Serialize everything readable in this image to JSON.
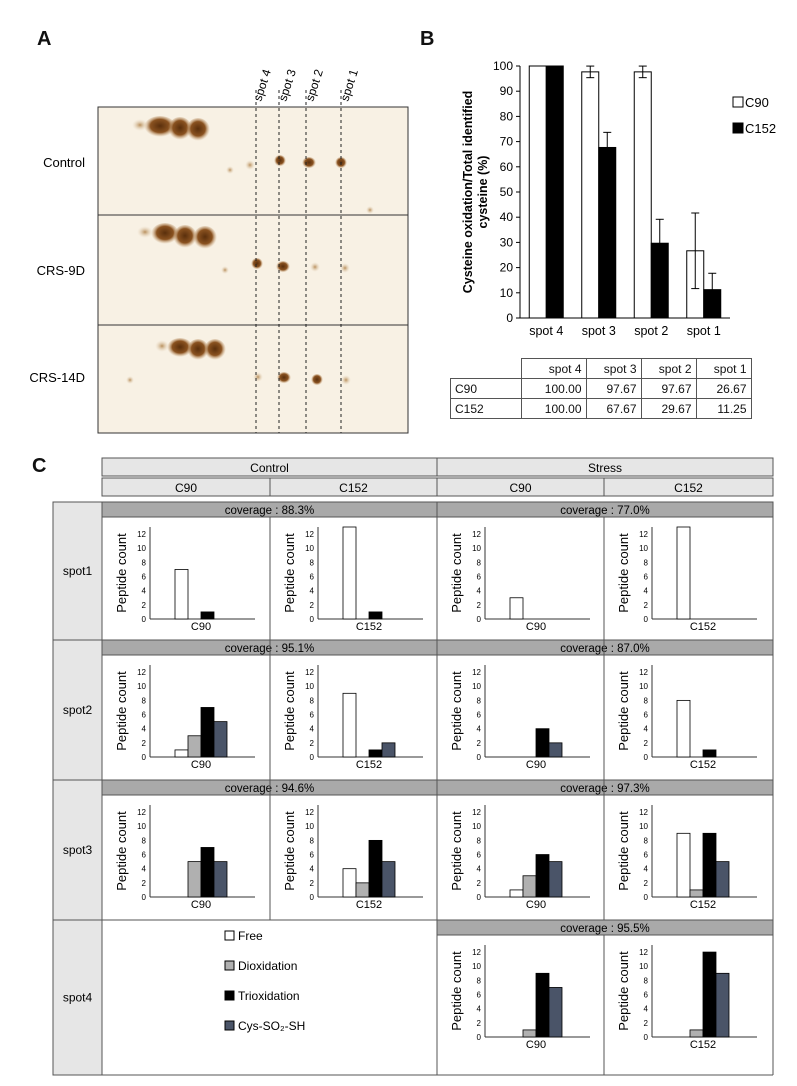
{
  "panel_labels": {
    "a": "A",
    "b": "B",
    "c": "C"
  },
  "panel_a": {
    "spot_labels": [
      "spot 4",
      "spot 3",
      "spot 2",
      "spot 1"
    ],
    "rows": [
      "Control",
      "CRS-9D",
      "CRS-14D"
    ]
  },
  "table_b": {
    "headers": [
      "",
      "spot 4",
      "spot 3",
      "spot 2",
      "spot 1"
    ],
    "rows": [
      {
        "label": "C90",
        "values": [
          "100.00",
          "97.67",
          "97.67",
          "26.67"
        ]
      },
      {
        "label": "C152",
        "values": [
          "100.00",
          "67.67",
          "29.67",
          "11.25"
        ]
      }
    ]
  },
  "panel_c": {
    "group_headers": [
      "Control",
      "Stress"
    ],
    "sub_headers": [
      "C90",
      "C152",
      "C90",
      "C152"
    ],
    "row_labels": [
      "spot1",
      "spot2",
      "spot3",
      "spot4"
    ],
    "coverage": [
      [
        "coverage : 88.3%",
        "coverage : 77.0%"
      ],
      [
        "coverage : 95.1%",
        "coverage : 87.0%"
      ],
      [
        "coverage : 94.6%",
        "coverage : 97.3%"
      ],
      [
        "",
        "coverage : 95.5%"
      ]
    ],
    "legend": [
      "Free",
      "Dioxidation",
      "Trioxidation",
      "Cys-SO₂-SH"
    ]
  },
  "chart_data": [
    {
      "type": "bar",
      "panel": "B",
      "categories": [
        "spot 4",
        "spot 3",
        "spot 2",
        "spot 1"
      ],
      "series": [
        {
          "name": "C90",
          "values": [
            100.0,
            97.67,
            97.67,
            26.67
          ],
          "errors": [
            0,
            2.3,
            2.3,
            15
          ],
          "color": "#ffffff"
        },
        {
          "name": "C152",
          "values": [
            100.0,
            67.67,
            29.67,
            11.25
          ],
          "errors": [
            0,
            6,
            9.5,
            6.5
          ],
          "color": "#000000"
        }
      ],
      "ylabel": "Cysteine oxidation/Total identified cysteine (%)",
      "ylim": [
        0,
        100
      ],
      "yticks": [
        0,
        10,
        20,
        30,
        40,
        50,
        60,
        70,
        80,
        90,
        100
      ],
      "legend_position": "right",
      "grid": false
    },
    {
      "type": "bar",
      "panel": "C",
      "ylabel": "Peptide count",
      "ylim": [
        0,
        13
      ],
      "yticks": [
        0,
        2,
        4,
        6,
        8,
        10,
        12
      ],
      "series_names": [
        "Free",
        "Dioxidation",
        "Trioxidation",
        "Cys-SO₂-SH"
      ],
      "series_colors": [
        "#ffffff",
        "#b0b0b0",
        "#000000",
        "#4a5468"
      ],
      "cells": [
        {
          "spot": "spot1",
          "condition": "Control",
          "xlabel": "C90",
          "values": [
            7,
            0,
            1,
            0
          ]
        },
        {
          "spot": "spot1",
          "condition": "Control",
          "xlabel": "C152",
          "values": [
            13,
            0,
            1,
            0
          ]
        },
        {
          "spot": "spot1",
          "condition": "Stress",
          "xlabel": "C90",
          "values": [
            3,
            0,
            0,
            0
          ]
        },
        {
          "spot": "spot1",
          "condition": "Stress",
          "xlabel": "C152",
          "values": [
            13,
            0,
            0,
            0
          ]
        },
        {
          "spot": "spot2",
          "condition": "Control",
          "xlabel": "C90",
          "values": [
            1,
            3,
            7,
            5
          ]
        },
        {
          "spot": "spot2",
          "condition": "Control",
          "xlabel": "C152",
          "values": [
            9,
            0,
            1,
            2
          ]
        },
        {
          "spot": "spot2",
          "condition": "Stress",
          "xlabel": "C90",
          "values": [
            0,
            0,
            4,
            2
          ]
        },
        {
          "spot": "spot2",
          "condition": "Stress",
          "xlabel": "C152",
          "values": [
            8,
            0,
            1,
            0
          ]
        },
        {
          "spot": "spot3",
          "condition": "Control",
          "xlabel": "C90",
          "values": [
            0,
            5,
            7,
            5
          ]
        },
        {
          "spot": "spot3",
          "condition": "Control",
          "xlabel": "C152",
          "values": [
            4,
            2,
            8,
            5
          ]
        },
        {
          "spot": "spot3",
          "condition": "Stress",
          "xlabel": "C90",
          "values": [
            1,
            3,
            6,
            5
          ]
        },
        {
          "spot": "spot3",
          "condition": "Stress",
          "xlabel": "C152",
          "values": [
            9,
            1,
            9,
            5
          ]
        },
        {
          "spot": "spot4",
          "condition": "Stress",
          "xlabel": "C90",
          "values": [
            0,
            1,
            9,
            7
          ]
        },
        {
          "spot": "spot4",
          "condition": "Stress",
          "xlabel": "C152",
          "values": [
            0,
            1,
            12,
            9
          ]
        }
      ]
    }
  ]
}
